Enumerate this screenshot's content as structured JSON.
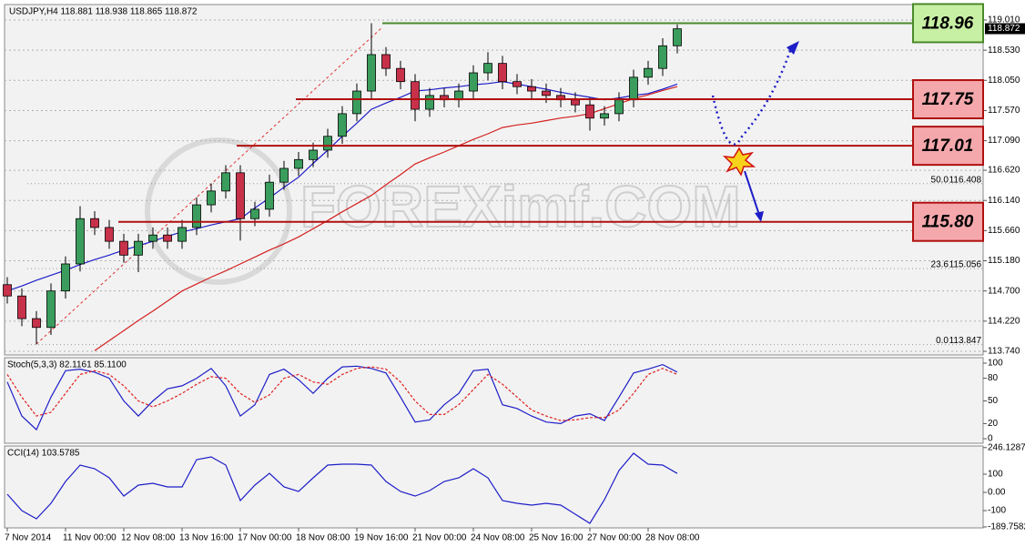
{
  "chart_data": [
    {
      "type": "candlestick",
      "title": "USDJPY,H4  118.881 118.938 118.865 118.872",
      "categories": [
        "7 Nov 2014",
        null,
        null,
        null,
        "11 Nov 00:00",
        null,
        null,
        null,
        "12 Nov 08:00",
        null,
        null,
        null,
        "13 Nov 16:00",
        null,
        null,
        null,
        "17 Nov 00:00",
        null,
        null,
        null,
        "18 Nov 08:00",
        null,
        null,
        null,
        "19 Nov 16:00",
        null,
        null,
        null,
        "21 Nov 00:00",
        null,
        null,
        null,
        "24 Nov 08:00",
        null,
        null,
        null,
        "25 Nov 16:00",
        null,
        null,
        null,
        "27 Nov 00:00",
        null,
        null,
        null,
        "28 Nov 08:00",
        null,
        null
      ],
      "open": [
        114.8,
        114.62,
        114.26,
        114.12,
        114.7,
        115.13,
        115.85,
        115.71,
        115.49,
        115.27,
        115.49,
        115.59,
        115.49,
        115.71,
        116.07,
        116.29,
        116.58,
        115.85,
        116.0,
        116.43,
        116.65,
        116.79,
        116.94,
        117.16,
        117.52,
        117.88,
        118.46,
        118.24,
        118.03,
        117.59,
        117.81,
        117.74,
        117.88,
        118.17,
        118.32,
        118.03,
        117.95,
        117.88,
        117.81,
        117.74,
        117.66,
        117.45,
        117.52,
        117.74,
        118.1,
        118.24,
        118.6
      ],
      "high": [
        114.92,
        114.74,
        114.38,
        114.82,
        115.25,
        116.05,
        115.97,
        115.83,
        115.61,
        115.61,
        115.71,
        115.71,
        115.83,
        116.19,
        116.41,
        116.7,
        116.7,
        116.12,
        116.55,
        116.77,
        116.91,
        117.06,
        117.28,
        117.64,
        118.0,
        118.96,
        118.58,
        118.36,
        118.15,
        117.93,
        117.93,
        118.0,
        118.29,
        118.5,
        118.44,
        118.15,
        118.07,
        118.0,
        117.93,
        117.86,
        117.78,
        117.64,
        117.86,
        118.22,
        118.36,
        118.72,
        118.94
      ],
      "low": [
        114.5,
        114.14,
        113.85,
        114.0,
        114.58,
        115.01,
        115.59,
        115.37,
        115.15,
        115.0,
        115.37,
        115.37,
        115.37,
        115.59,
        115.95,
        116.17,
        115.5,
        115.73,
        115.88,
        116.31,
        116.53,
        116.67,
        116.82,
        117.04,
        117.4,
        117.76,
        118.12,
        117.91,
        117.4,
        117.47,
        117.62,
        117.62,
        117.76,
        118.05,
        117.91,
        117.83,
        117.76,
        117.69,
        117.62,
        117.54,
        117.25,
        117.33,
        117.4,
        117.62,
        117.98,
        118.12,
        118.48
      ],
      "close": [
        114.62,
        114.26,
        114.12,
        114.7,
        115.13,
        115.85,
        115.71,
        115.49,
        115.27,
        115.49,
        115.59,
        115.49,
        115.71,
        116.07,
        116.29,
        116.58,
        115.85,
        116.0,
        116.43,
        116.65,
        116.79,
        116.94,
        117.16,
        117.52,
        117.88,
        118.46,
        118.24,
        118.03,
        117.59,
        117.81,
        117.74,
        117.88,
        118.17,
        118.32,
        118.03,
        117.95,
        117.88,
        117.81,
        117.74,
        117.66,
        117.45,
        117.52,
        117.74,
        118.1,
        118.24,
        118.6,
        118.87
      ],
      "up_color": "#3a9d5d",
      "down_color": "#c8314a",
      "series": [
        {
          "color": "#1e1ec8",
          "values": [
            114.7,
            114.78,
            114.87,
            114.95,
            115.03,
            115.12,
            115.2,
            115.27,
            115.35,
            115.42,
            115.49,
            115.57,
            115.64,
            115.69,
            115.75,
            115.8,
            115.85,
            116.02,
            116.18,
            116.35,
            116.51,
            116.73,
            116.94,
            117.16,
            117.37,
            117.59,
            117.69,
            117.78,
            117.88,
            117.9,
            117.93,
            117.95,
            117.98,
            118.0,
            118.03,
            117.99,
            117.95,
            117.91,
            117.86,
            117.82,
            117.78,
            117.74,
            117.77,
            117.81,
            117.84,
            117.91,
            117.99
          ]
        },
        {
          "color": "#d42020",
          "values": [
            null,
            null,
            null,
            null,
            null,
            null,
            113.75,
            113.91,
            114.07,
            114.23,
            114.38,
            114.54,
            114.7,
            114.81,
            114.92,
            115.02,
            115.13,
            115.24,
            115.35,
            115.45,
            115.56,
            115.69,
            115.82,
            115.96,
            116.09,
            116.22,
            116.39,
            116.55,
            116.72,
            116.82,
            116.91,
            117.01,
            117.11,
            117.2,
            117.3,
            117.34,
            117.37,
            117.41,
            117.45,
            117.48,
            117.52,
            117.6,
            117.68,
            117.76,
            117.82,
            117.89,
            117.95
          ]
        }
      ],
      "ylim": [
        113.682,
        119.256
      ],
      "yticks": [
        {
          "value": 119.01,
          "label": "119.010"
        },
        {
          "value": 118.53,
          "label": "118.530"
        },
        {
          "value": 118.05,
          "label": "118.050"
        },
        {
          "value": 117.57,
          "label": "117.570"
        },
        {
          "value": 117.09,
          "label": "117.090"
        },
        {
          "value": 116.62,
          "label": "116.620"
        },
        {
          "value": 116.14,
          "label": "116.140"
        },
        {
          "value": 115.66,
          "label": "115.660"
        },
        {
          "value": 115.18,
          "label": "115.180"
        },
        {
          "value": 114.7,
          "label": "114.700"
        },
        {
          "value": 114.22,
          "label": "114.220"
        },
        {
          "value": 113.74,
          "label": "113.740"
        }
      ],
      "grid": true,
      "current_price": 118.872,
      "levels": [
        {
          "value": 118.96,
          "label": "118.96",
          "color": "#4a8a2a",
          "box_color": "#c8f0a4"
        },
        {
          "value": 117.75,
          "label": "117.75",
          "color": "#b01010",
          "box_color": "#f4a8ac"
        },
        {
          "value": 117.01,
          "label": "117.01",
          "color": "#b01010",
          "box_color": "#f4a8ac"
        },
        {
          "value": 115.8,
          "label": "115.80",
          "color": "#b01010",
          "box_color": "#f4a8ac"
        }
      ],
      "fibonacci": [
        {
          "ratio": {
            "value": 50,
            "label": "50.0"
          },
          "price": {
            "value": 116.408,
            "label": "116.408"
          }
        },
        {
          "ratio": {
            "value": 23.6,
            "label": "23.6"
          },
          "price": {
            "value": 115.056,
            "label": "115.056"
          }
        },
        {
          "ratio": {
            "value": 0,
            "label": "0.0"
          },
          "price": {
            "value": 113.847,
            "label": "113.847"
          }
        }
      ],
      "watermark": "FOREXimf.COM"
    },
    {
      "type": "line",
      "title": "Stoch(5,3,3) 82.1161 85.1100",
      "ylim": [
        -6,
        107.2
      ],
      "yticks": [
        100,
        80,
        50,
        20,
        0
      ],
      "series": [
        {
          "color": "#1e1ec8",
          "values": [
            75,
            30,
            12,
            55,
            90,
            92,
            88,
            80,
            50,
            30,
            50,
            66,
            70,
            80,
            93,
            70,
            30,
            45,
            85,
            92,
            78,
            60,
            80,
            95,
            96,
            93,
            87,
            55,
            22,
            25,
            45,
            60,
            90,
            92,
            45,
            40,
            30,
            22,
            20,
            30,
            33,
            24,
            55,
            87,
            92,
            98,
            88
          ]
        },
        {
          "color": "#e02020",
          "dashed": true,
          "values": [
            85,
            55,
            30,
            35,
            60,
            85,
            90,
            85,
            70,
            50,
            42,
            50,
            60,
            72,
            82,
            80,
            60,
            48,
            58,
            80,
            85,
            75,
            72,
            85,
            93,
            95,
            92,
            75,
            50,
            32,
            32,
            45,
            65,
            85,
            72,
            55,
            38,
            30,
            24,
            25,
            28,
            28,
            38,
            60,
            85,
            93,
            85
          ]
        }
      ]
    },
    {
      "type": "line",
      "title": "CCI(14) 103.5785",
      "ylim": [
        -195,
        255
      ],
      "yticks": [
        246.1287,
        100,
        {
          "value": 0,
          "label": "0.00"
        },
        -100,
        -189.7582
      ],
      "series": [
        {
          "color": "#1e1ec8",
          "values": [
            -10,
            -100,
            -145,
            -60,
            60,
            150,
            130,
            80,
            -20,
            40,
            50,
            30,
            30,
            180,
            195,
            150,
            -45,
            40,
            105,
            30,
            5,
            80,
            150,
            155,
            155,
            150,
            60,
            5,
            -20,
            10,
            60,
            80,
            130,
            80,
            -45,
            -60,
            -70,
            -60,
            -70,
            -120,
            -170,
            -40,
            120,
            215,
            155,
            150,
            104
          ]
        }
      ]
    }
  ]
}
